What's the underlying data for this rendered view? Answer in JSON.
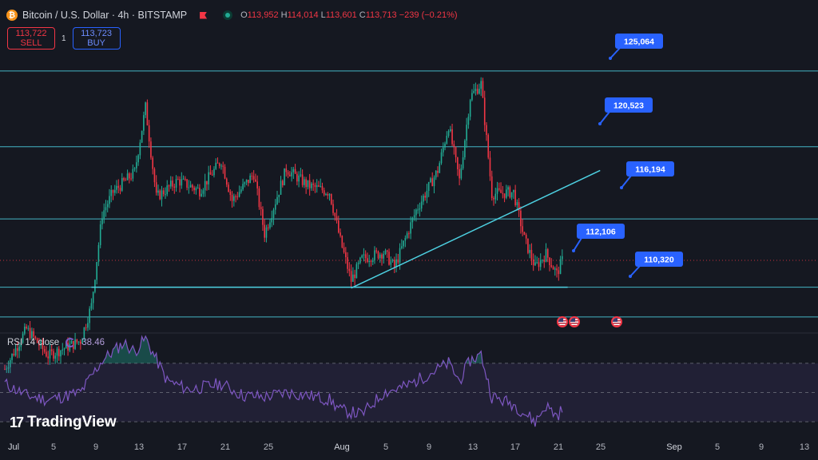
{
  "header": {
    "coin_symbol": "₿",
    "title": "Bitcoin / U.S. Dollar · 4h · BITSTAMP",
    "o_label": "O",
    "o_value": "113,952",
    "h_label": "H",
    "h_value": "114,014",
    "l_label": "L",
    "l_value": "113,601",
    "c_label": "C",
    "c_value": "113,713",
    "change": "−239 (−0.21%)"
  },
  "trade": {
    "sell_price": "113,722",
    "sell_label": "SELL",
    "spread": "1",
    "buy_price": "113,723",
    "buy_label": "BUY"
  },
  "rsi": {
    "label": "RSI 14 close",
    "value": "38.46",
    "color": "#7e57c2"
  },
  "logo": {
    "mark": "17",
    "text": "TradingView"
  },
  "colors": {
    "up": "#22ab94",
    "down": "#f23645",
    "level": "#4dd0e1",
    "label_bg": "#2962ff"
  },
  "events": [
    "us-flag-icon",
    "us-flag-icon",
    "us-flag-icon"
  ],
  "chart_data": {
    "type": "candlestick",
    "timeframe": "4h",
    "y_range": [
      109500,
      127500
    ],
    "x_range": [
      "2025-07-01",
      "2025-09-15"
    ],
    "x_ticks": [
      "Jul",
      "5",
      "9",
      "13",
      "17",
      "21",
      "25",
      "Aug",
      "5",
      "9",
      "13",
      "17",
      "21",
      "25",
      "Sep",
      "5",
      "9",
      "13"
    ],
    "price_path": [
      [
        "2025-07-01",
        107200
      ],
      [
        "2025-07-03",
        109600
      ],
      [
        "2025-07-05",
        108000
      ],
      [
        "2025-07-08",
        108900
      ],
      [
        "2025-07-09",
        111000
      ],
      [
        "2025-07-10",
        116500
      ],
      [
        "2025-07-11",
        117800
      ],
      [
        "2025-07-13",
        119000
      ],
      [
        "2025-07-14",
        122900
      ],
      [
        "2025-07-15",
        117500
      ],
      [
        "2025-07-17",
        118500
      ],
      [
        "2025-07-19",
        117900
      ],
      [
        "2025-07-21",
        119700
      ],
      [
        "2025-07-22",
        117300
      ],
      [
        "2025-07-24",
        118900
      ],
      [
        "2025-07-25",
        115300
      ],
      [
        "2025-07-27",
        119200
      ],
      [
        "2025-07-29",
        118200
      ],
      [
        "2025-07-31",
        117800
      ],
      [
        "2025-08-01",
        114900
      ],
      [
        "2025-08-02",
        112500
      ],
      [
        "2025-08-03",
        113800
      ],
      [
        "2025-08-05",
        114200
      ],
      [
        "2025-08-06",
        113300
      ],
      [
        "2025-08-08",
        116700
      ],
      [
        "2025-08-10",
        119100
      ],
      [
        "2025-08-11",
        121800
      ],
      [
        "2025-08-12",
        118500
      ],
      [
        "2025-08-13",
        123500
      ],
      [
        "2025-08-14",
        124300
      ],
      [
        "2025-08-15",
        117700
      ],
      [
        "2025-08-17",
        117800
      ],
      [
        "2025-08-18",
        115000
      ],
      [
        "2025-08-19",
        113300
      ],
      [
        "2025-08-20",
        114100
      ],
      [
        "2025-08-21",
        112900
      ],
      [
        "2025-08-21T12",
        113713
      ]
    ],
    "horizontal_levels": [
      {
        "value": 125064,
        "label": "125,064"
      },
      {
        "value": 120523,
        "label": "120,523"
      },
      {
        "value": 116194,
        "label": "116,194"
      },
      {
        "value": 112106,
        "label": "112,106"
      },
      {
        "value": 110320,
        "label": "110,320"
      }
    ],
    "trendlines": [
      {
        "from": [
          "2025-08-02",
          112050
        ],
        "to": [
          "2025-08-25",
          119100
        ]
      },
      {
        "from": [
          "2025-07-09",
          112106
        ],
        "to": [
          "2025-08-22",
          112106
        ]
      }
    ],
    "current_price_line": 113713,
    "rsi_path": [
      [
        "2025-07-01",
        56
      ],
      [
        "2025-07-03",
        48
      ],
      [
        "2025-07-05",
        45
      ],
      [
        "2025-07-08",
        50
      ],
      [
        "2025-07-10",
        72
      ],
      [
        "2025-07-12",
        84
      ],
      [
        "2025-07-13",
        78
      ],
      [
        "2025-07-14",
        87
      ],
      [
        "2025-07-16",
        58
      ],
      [
        "2025-07-18",
        52
      ],
      [
        "2025-07-21",
        56
      ],
      [
        "2025-07-23",
        48
      ],
      [
        "2025-07-25",
        47
      ],
      [
        "2025-07-27",
        50
      ],
      [
        "2025-07-29",
        48
      ],
      [
        "2025-07-31",
        45
      ],
      [
        "2025-08-01",
        38
      ],
      [
        "2025-08-03",
        35
      ],
      [
        "2025-08-05",
        50
      ],
      [
        "2025-08-07",
        54
      ],
      [
        "2025-08-09",
        62
      ],
      [
        "2025-08-11",
        70
      ],
      [
        "2025-08-12",
        58
      ],
      [
        "2025-08-13",
        72
      ],
      [
        "2025-08-14",
        76
      ],
      [
        "2025-08-15",
        47
      ],
      [
        "2025-08-17",
        42
      ],
      [
        "2025-08-19",
        30
      ],
      [
        "2025-08-20",
        41
      ],
      [
        "2025-08-21",
        34
      ],
      [
        "2025-08-21T12",
        38.46
      ]
    ],
    "rsi_levels": [
      70,
      50,
      30
    ]
  }
}
